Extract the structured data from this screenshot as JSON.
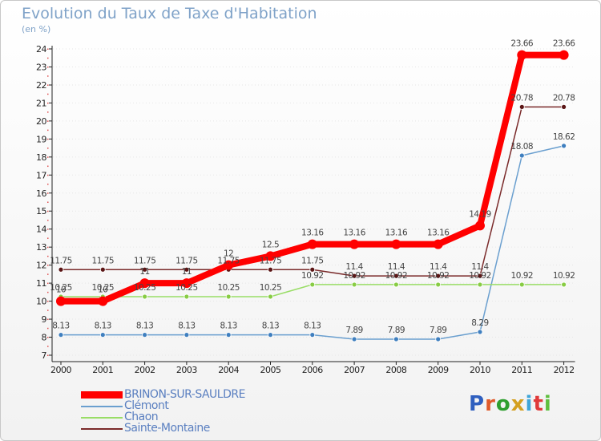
{
  "chart_data": {
    "type": "line",
    "title": "Evolution du Taux de Taxe d'Habitation",
    "subtitle": "(en %)",
    "xlabel": "",
    "ylabel": "(en %)",
    "categories": [
      "2000",
      "2001",
      "2002",
      "2003",
      "2004",
      "2005",
      "2006",
      "2007",
      "2008",
      "2009",
      "2010",
      "2011",
      "2012"
    ],
    "ylim": [
      7,
      24
    ],
    "yticks": [
      7,
      8,
      9,
      10,
      11,
      12,
      13,
      14,
      15,
      16,
      17,
      18,
      19,
      20,
      21,
      22,
      23,
      24
    ],
    "series": [
      {
        "name": "BRINON-SUR-SAULDRE",
        "color": "#ff0000",
        "point_color": "#ff0000",
        "emphasis": true,
        "values": [
          10,
          10,
          11,
          11,
          12,
          12.5,
          13.16,
          13.16,
          13.16,
          13.16,
          14.19,
          23.66,
          23.66
        ],
        "labels": [
          "10",
          "10",
          "11",
          "11",
          "12",
          "12.5",
          "13.16",
          "13.16",
          "13.16",
          "13.16",
          "14.19",
          "23.66",
          "23.66"
        ]
      },
      {
        "name": "Clémont",
        "color": "#6a9fcf",
        "point_color": "#3f7fbf",
        "emphasis": false,
        "values": [
          8.13,
          8.13,
          8.13,
          8.13,
          8.13,
          8.13,
          8.13,
          7.89,
          7.89,
          7.89,
          8.29,
          18.08,
          18.62
        ],
        "labels": [
          "8.13",
          "8.13",
          "8.13",
          "8.13",
          "8.13",
          "8.13",
          "8.13",
          "7.89",
          "7.89",
          "7.89",
          "8.29",
          "18.08",
          "18.62"
        ]
      },
      {
        "name": "Chaon",
        "color": "#99dd66",
        "point_color": "#88cc44",
        "emphasis": false,
        "values": [
          10.25,
          10.25,
          10.25,
          10.25,
          10.25,
          10.25,
          10.92,
          10.92,
          10.92,
          10.92,
          10.92,
          10.92,
          10.92
        ],
        "labels": [
          "10.25",
          "10.25",
          "10.25",
          "10.25",
          "10.25",
          "10.25",
          "10.92",
          "10.92",
          "10.92",
          "10.92",
          "10.92",
          "10.92",
          "10.92"
        ]
      },
      {
        "name": "Sainte-Montaine",
        "color": "#7a2a2a",
        "point_color": "#5a1515",
        "emphasis": false,
        "values": [
          11.75,
          11.75,
          11.75,
          11.75,
          11.75,
          11.75,
          11.75,
          11.4,
          11.4,
          11.4,
          11.4,
          20.78,
          20.78
        ],
        "labels": [
          "11.75",
          "11.75",
          "11.75",
          "11.75",
          "11.75",
          "11.75",
          "11.75",
          "11.4",
          "11.4",
          "11.4",
          "11.4",
          "20.78",
          "20.78"
        ]
      }
    ],
    "legend_position": "bottom-left"
  },
  "legend": {
    "items": [
      {
        "label": "BRINON-SUR-SAULDRE",
        "color": "#ff0000"
      },
      {
        "label": "Clémont",
        "color": "#6a9fcf"
      },
      {
        "label": "Chaon",
        "color": "#99dd66"
      },
      {
        "label": "Sainte-Montaine",
        "color": "#7a2a2a"
      }
    ]
  },
  "logo": {
    "letters": [
      "P",
      "r",
      "o",
      "x",
      "i",
      "t",
      "i"
    ],
    "colors": [
      "#2f5fbf",
      "#e05a2a",
      "#2f9f2f",
      "#d4a020",
      "#3fa5d8",
      "#e03a3a",
      "#5fbf3f"
    ]
  }
}
